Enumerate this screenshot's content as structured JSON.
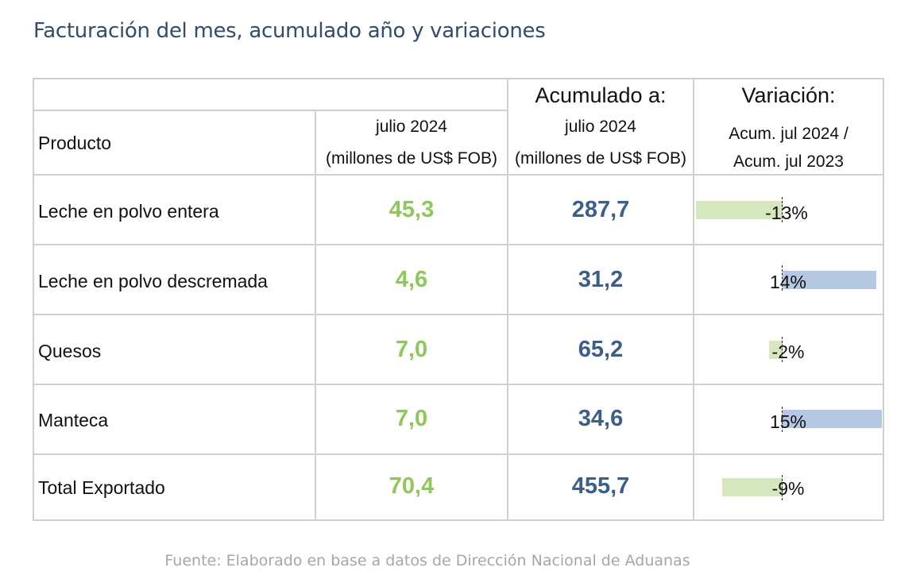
{
  "title": "Facturación del mes, acumulado año y variaciones",
  "header": {
    "col_product": "Producto",
    "col_month_line1": "julio 2024",
    "col_month_line2": "(millones de US$ FOB)",
    "col_accum_title": "Acumulado a:",
    "col_accum_line1": "julio 2024",
    "col_accum_line2": "(millones de US$ FOB)",
    "col_var_title": "Variación:",
    "col_var_line1": "Acum. jul 2024 /",
    "col_var_line2": "Acum. jul 2023"
  },
  "rows": [
    {
      "product": "Leche en polvo entera",
      "month": "45,3",
      "accum": "287,7",
      "variation": "-13%",
      "variation_value": -13
    },
    {
      "product": "Leche en polvo descremada",
      "month": "4,6",
      "accum": "31,2",
      "variation": "14%",
      "variation_value": 14
    },
    {
      "product": "Quesos",
      "month": "7,0",
      "accum": "65,2",
      "variation": "-2%",
      "variation_value": -2
    },
    {
      "product": "Manteca",
      "month": "7,0",
      "accum": "34,6",
      "variation": "15%",
      "variation_value": 15
    },
    {
      "product": "Total Exportado",
      "month": "70,4",
      "accum": "455,7",
      "variation": "-9%",
      "variation_value": -9
    }
  ],
  "colors": {
    "title": "#2f4d6f",
    "month_values": "#8dc85a",
    "accum_values": "#3a5f8b",
    "negative_bar": "#d5e7bf",
    "positive_bar": "#b4c8e3"
  },
  "source": "Fuente: Elaborado en base a datos de Dirección Nacional de Aduanas"
}
